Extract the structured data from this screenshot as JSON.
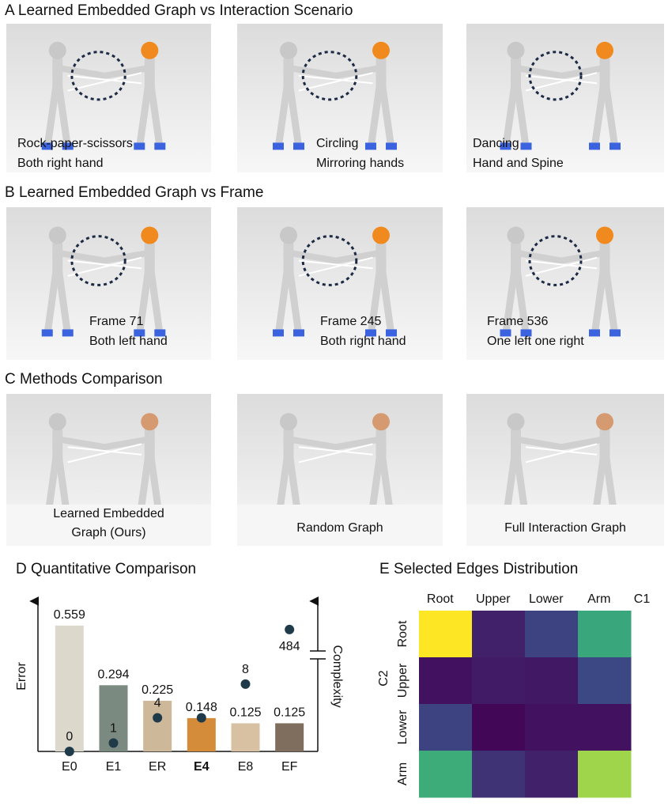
{
  "panel_a": {
    "title": "A Learned Embedded Graph vs Interaction Scenario",
    "captions": [
      [
        "Rock-paper-scissors",
        "Both right hand"
      ],
      [
        "Circling",
        "Mirroring hands"
      ],
      [
        "Dancing",
        "Hand and Spine"
      ]
    ]
  },
  "panel_b": {
    "title": "B Learned Embedded Graph vs Frame",
    "captions": [
      [
        "Frame 71",
        "Both left hand"
      ],
      [
        "Frame 245",
        "Both right hand"
      ],
      [
        "Frame 536",
        "One left one right"
      ]
    ]
  },
  "panel_c": {
    "title": "C Methods Comparison",
    "captions": [
      [
        "Learned Embedded",
        "Graph (Ours)"
      ],
      [
        "Random Graph"
      ],
      [
        "Full Interaction Graph"
      ]
    ]
  },
  "chart_data": [
    {
      "type": "bar",
      "title": "D Quantitative Comparison",
      "y_label": "Error",
      "y2_label": "Complexity",
      "categories": [
        "E0",
        "E1",
        "ER",
        "E4",
        "E8",
        "EF"
      ],
      "bold": [
        false,
        false,
        false,
        true,
        false,
        false
      ],
      "ylim": [
        0,
        0.65
      ],
      "y2lim": [
        0,
        500
      ],
      "y2_break": [
        11,
        470
      ],
      "series": [
        {
          "name": "Error",
          "colors": [
            "#dcd8cc",
            "#7b8a80",
            "#cdb89a",
            "#d48c3a",
            "#d8c1a3",
            "#7f6d5e"
          ],
          "values": [
            0.559,
            0.294,
            0.225,
            0.148,
            0.125,
            0.125
          ]
        },
        {
          "name": "Complexity",
          "axis": "y2",
          "color": "#1f3b4a",
          "values": [
            0,
            1,
            4,
            4,
            8,
            484
          ],
          "value_labels": [
            "0",
            "1",
            "4",
            null,
            "8",
            "484"
          ]
        }
      ]
    },
    {
      "type": "heatmap",
      "title": "E Selected Edges Distribution",
      "x_label": "C1",
      "y_label": "C2",
      "colormap": "viridis",
      "x": [
        "Root",
        "Upper",
        "Lower",
        "Arm"
      ],
      "y": [
        "Root",
        "Upper",
        "Lower",
        "Arm"
      ],
      "values": [
        [
          1.0,
          0.1,
          0.2,
          0.6
        ],
        [
          0.05,
          0.08,
          0.07,
          0.22
        ],
        [
          0.2,
          0.02,
          0.05,
          0.05
        ],
        [
          0.62,
          0.15,
          0.1,
          0.85
        ]
      ]
    }
  ]
}
